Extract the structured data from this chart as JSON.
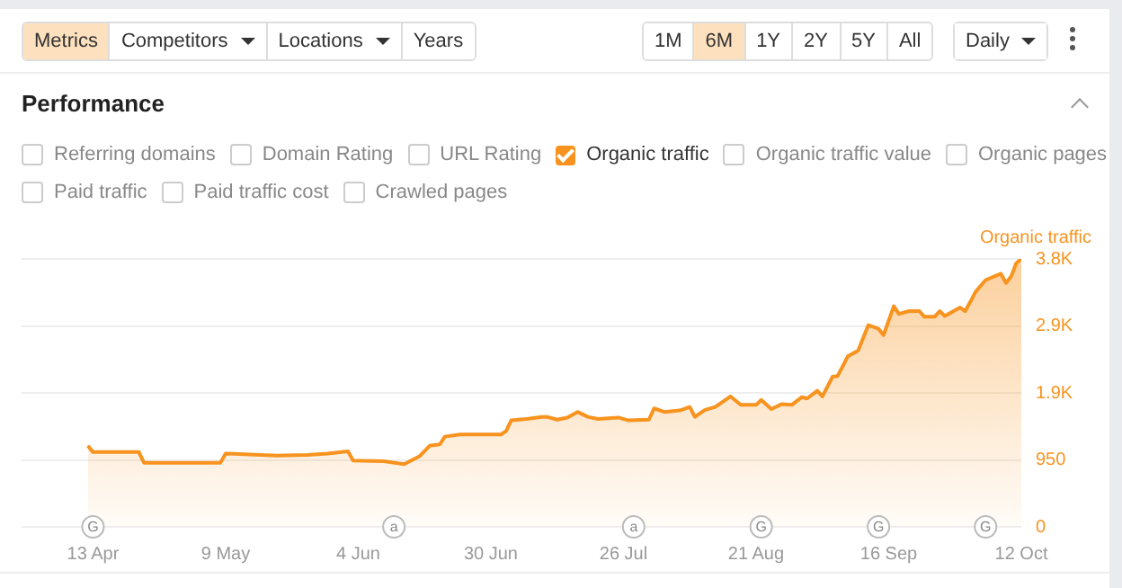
{
  "chart_data": {
    "type": "area",
    "title": "Performance",
    "x": [
      "--04-12",
      "--04-13",
      "--04-22",
      "--04-23",
      "--05-08",
      "--05-09",
      "--05-19",
      "--05-25",
      "--05-29",
      "--06-02",
      "--06-03",
      "--06-09",
      "--06-13",
      "--06-16",
      "--06-18",
      "--06-20",
      "--06-21",
      "--06-24",
      "--07-02",
      "--07-03",
      "--07-04",
      "--07-07",
      "--07-10",
      "--07-11",
      "--07-13",
      "--07-15",
      "--07-17",
      "--07-19",
      "--07-21",
      "--07-25",
      "--07-27",
      "--07-31",
      "--08-01",
      "--08-03",
      "--08-06",
      "--08-08",
      "--08-09",
      "--08-11",
      "--08-13",
      "--08-16",
      "--08-18",
      "--08-21",
      "--08-22",
      "--08-24",
      "--08-26",
      "--08-28",
      "--08-30",
      "--08-31",
      "--09-02",
      "--09-03",
      "--09-05",
      "--09-06",
      "--09-08",
      "--09-10",
      "--09-12",
      "--09-14",
      "--09-15",
      "--09-17",
      "--09-18",
      "--09-20",
      "--09-22",
      "--09-23",
      "--09-25",
      "--09-26",
      "--09-27",
      "--09-30",
      "--10-01",
      "--10-02",
      "--10-03",
      "--10-05",
      "--10-08",
      "--10-09",
      "--10-10",
      "--10-11",
      "--10-12"
    ],
    "series": [
      {
        "name": "Organic traffic",
        "color": "#f7931e",
        "values": [
          1150,
          1060,
          1060,
          910,
          910,
          1040,
          1010,
          1020,
          1040,
          1070,
          940,
          930,
          890,
          1000,
          1150,
          1170,
          1280,
          1310,
          1310,
          1360,
          1510,
          1530,
          1560,
          1560,
          1520,
          1550,
          1630,
          1560,
          1530,
          1550,
          1510,
          1520,
          1680,
          1630,
          1650,
          1700,
          1560,
          1660,
          1700,
          1850,
          1730,
          1730,
          1800,
          1670,
          1740,
          1730,
          1840,
          1820,
          1930,
          1850,
          2130,
          2140,
          2420,
          2500,
          2860,
          2810,
          2720,
          3130,
          3020,
          3060,
          3060,
          2980,
          2980,
          3060,
          2990,
          3110,
          3060,
          3190,
          3330,
          3500,
          3590,
          3460,
          3550,
          3740,
          3800
        ]
      }
    ],
    "xlim": [
      "--03-30",
      "--10-12"
    ],
    "xticks": [
      {
        "value": "--04-13",
        "label": "13 Apr"
      },
      {
        "value": "--05-09",
        "label": "9 May"
      },
      {
        "value": "--06-04",
        "label": "4 Jun"
      },
      {
        "value": "--06-30",
        "label": "30 Jun"
      },
      {
        "value": "--07-26",
        "label": "26 Jul"
      },
      {
        "value": "--08-21",
        "label": "21 Aug"
      },
      {
        "value": "--09-16",
        "label": "16 Sep"
      },
      {
        "value": "--10-12",
        "label": "12 Oct"
      }
    ],
    "ylim": [
      0,
      3800
    ],
    "yticks": [
      0,
      950,
      {
        "value": 1900,
        "label": "1.9K"
      },
      {
        "value": 2850,
        "label": "2.9K"
      },
      {
        "value": 3800,
        "label": "3.8K"
      }
    ],
    "grid": "y",
    "annotations": [
      "Metrics",
      "Competitors",
      "Locations",
      "Years",
      "1M",
      "6M",
      "1Y",
      "2Y",
      "5Y",
      "All",
      "Daily",
      "Referring domains",
      "Domain Rating",
      "URL Rating",
      "Organic traffic",
      "Organic traffic value",
      "Organic pages",
      "Paid traffic",
      "Paid traffic cost",
      "Crawled pages",
      {
        "text": "G",
        "x": "--04-13",
        "y": 0
      },
      {
        "text": "a",
        "x": "--06-11",
        "y": 0
      },
      {
        "text": "a",
        "x": "--07-28",
        "y": 0
      },
      {
        "text": "G",
        "x": "--08-22",
        "y": 0
      },
      {
        "text": "G",
        "x": "--09-14",
        "y": 0
      },
      {
        "text": "G",
        "x": "--10-05",
        "y": 0
      }
    ]
  }
}
